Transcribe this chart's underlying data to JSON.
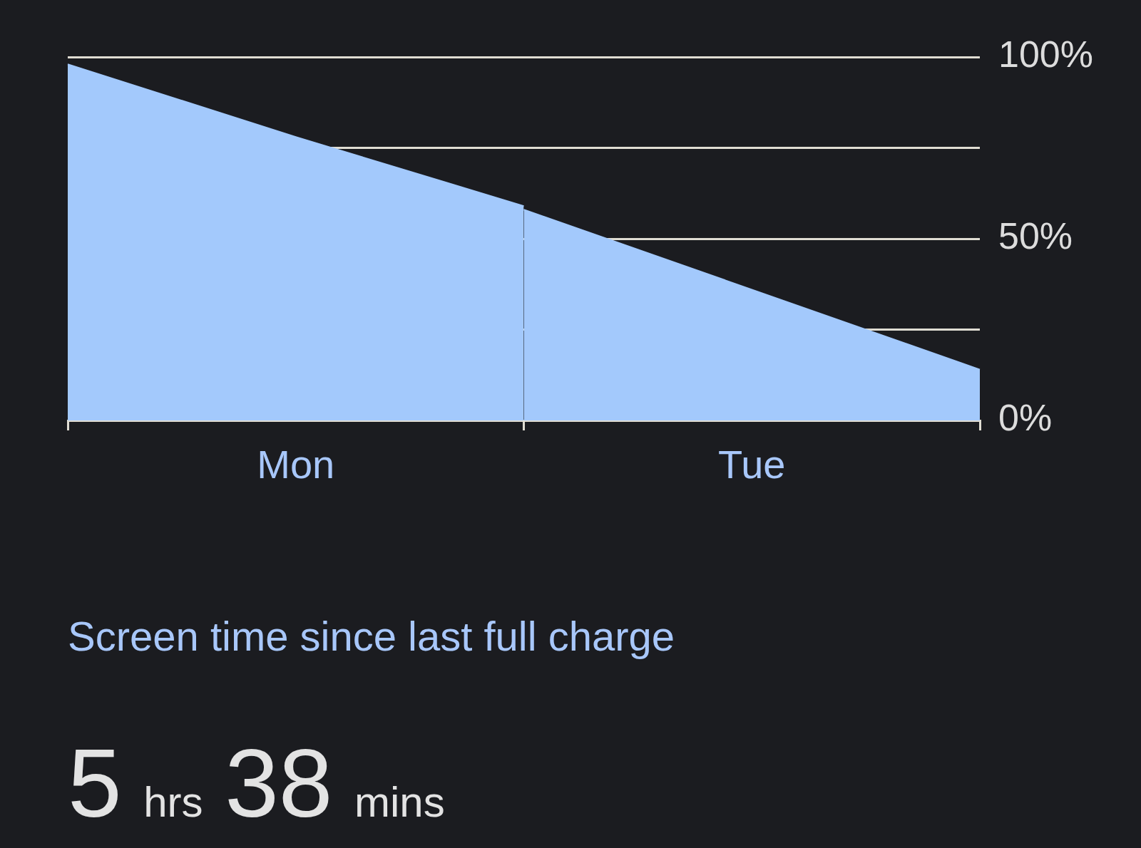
{
  "chart_data": {
    "type": "area",
    "categories": [
      null,
      "Mon",
      null,
      "Tue",
      null
    ],
    "ylim": [
      0,
      100
    ],
    "yticks": [
      {
        "value": 0,
        "label": "0%"
      },
      {
        "value": 25,
        "label": null
      },
      {
        "value": 50,
        "label": "50%"
      },
      {
        "value": 75,
        "label": null
      },
      {
        "value": 100,
        "label": "100%"
      }
    ],
    "series": [
      {
        "color": "#a3c9fc",
        "values": [
          98,
          78,
          59,
          null,
          null
        ]
      },
      {
        "color": "#a3c9fc",
        "values": [
          null,
          null,
          58,
          36,
          14
        ]
      }
    ],
    "grid": "y",
    "annotations": [
      "Screen time since last full charge",
      "5 hrs 38 mins"
    ]
  }
}
